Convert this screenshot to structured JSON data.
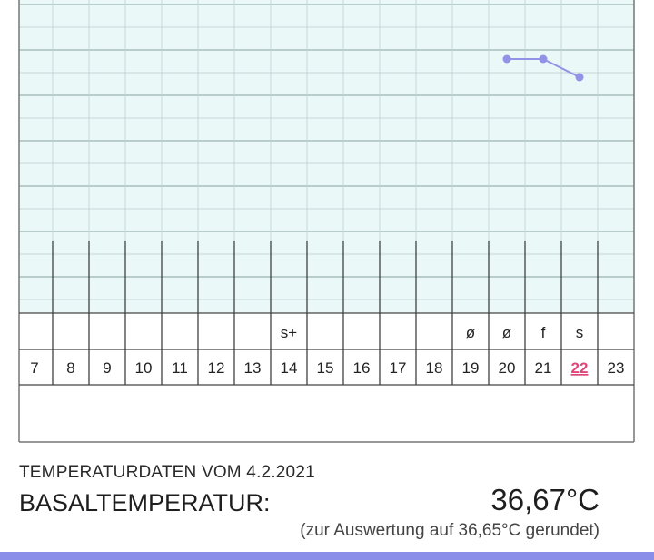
{
  "chart_data": {
    "type": "line",
    "days": [
      "7",
      "8",
      "9",
      "10",
      "11",
      "12",
      "13",
      "14",
      "15",
      "16",
      "17",
      "18",
      "19",
      "20",
      "21",
      "22",
      "23"
    ],
    "marks": [
      "",
      "",
      "",
      "",
      "",
      "",
      "",
      "s+",
      "",
      "",
      "",
      "",
      "ø",
      "ø",
      "f",
      "s",
      ""
    ],
    "today": "22",
    "series": [
      {
        "days": [
          "20",
          "21",
          "22"
        ],
        "rows_from_top": [
          1.3,
          1.3,
          1.7
        ]
      }
    ],
    "colors": {
      "grid_bg": "#eaf8f8",
      "line": "#9194e6",
      "today": "#e0457b",
      "bar": "#8a8ee8"
    }
  },
  "info": {
    "title": "TEMPERATURDATEN VOM 4.2.2021",
    "label": "BASALTEMPERATUR:",
    "value": "36,67°C",
    "note": "(zur Auswertung auf 36,65°C gerundet)"
  }
}
